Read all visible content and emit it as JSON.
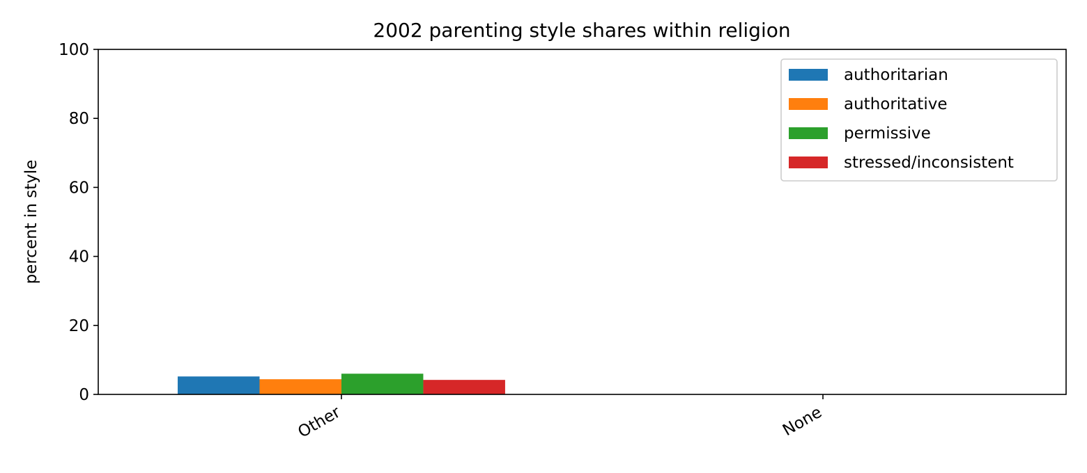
{
  "chart_data": {
    "type": "bar",
    "title": "2002 parenting style shares within religion",
    "xlabel": "",
    "ylabel": "percent in style",
    "categories": [
      "Other",
      "None"
    ],
    "ylim": [
      0,
      100
    ],
    "yticks": [
      0,
      20,
      40,
      60,
      80,
      100
    ],
    "grid": false,
    "legend_position": "top-right",
    "series": [
      {
        "name": "authoritarian",
        "color": "#1f77b4",
        "values": [
          5.2,
          0
        ]
      },
      {
        "name": "authoritative",
        "color": "#ff7f0e",
        "values": [
          4.4,
          0
        ]
      },
      {
        "name": "permissive",
        "color": "#2ca02c",
        "values": [
          6.0,
          0
        ]
      },
      {
        "name": "stressed/inconsistent",
        "color": "#d62728",
        "values": [
          4.2,
          0
        ]
      }
    ]
  }
}
